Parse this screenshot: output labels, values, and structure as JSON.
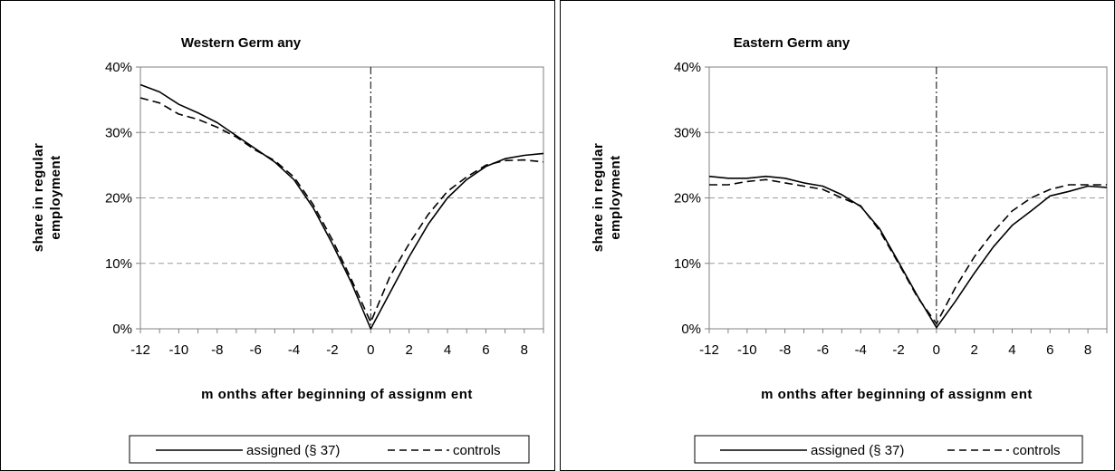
{
  "chart_data": [
    {
      "type": "line",
      "title": "Western Germ any",
      "xlabel": "m onths after beginning of assignm ent",
      "ylabel_lines": [
        "share in regular",
        "employment"
      ],
      "x": [
        -12,
        -11,
        -10,
        -9,
        -8,
        -7,
        -6,
        -5,
        -4,
        -3,
        -2,
        -1,
        0,
        1,
        2,
        3,
        4,
        5,
        6,
        7,
        8,
        9
      ],
      "xticks": [
        "-12",
        "-10",
        "-8",
        "-6",
        "-4",
        "-2",
        "0",
        "2",
        "4",
        "6",
        "8"
      ],
      "xtick_values": [
        -12,
        -10,
        -8,
        -6,
        -4,
        -2,
        0,
        2,
        4,
        6,
        8
      ],
      "yticks": [
        "0%",
        "10%",
        "20%",
        "30%",
        "40%"
      ],
      "ytick_values": [
        0,
        10,
        20,
        30,
        40
      ],
      "xlim": [
        -12,
        9
      ],
      "ylim": [
        0,
        40
      ],
      "grid": "horizontal dashed",
      "vline_x": 0,
      "legend_position": "bottom",
      "series": [
        {
          "name": "assigned (§ 37)",
          "style": "solid",
          "values": [
            37.3,
            36.2,
            34.3,
            33.0,
            31.5,
            29.5,
            27.5,
            25.5,
            22.8,
            18.5,
            13.0,
            7.0,
            0.0,
            5.5,
            11.0,
            16.0,
            20.0,
            22.8,
            24.8,
            26.0,
            26.5,
            26.8
          ]
        },
        {
          "name": "controls",
          "style": "dashed",
          "values": [
            35.3,
            34.5,
            32.8,
            32.0,
            30.8,
            29.3,
            27.3,
            25.7,
            23.2,
            19.0,
            13.6,
            7.5,
            1.0,
            8.0,
            13.0,
            17.5,
            21.0,
            23.2,
            25.0,
            25.7,
            25.8,
            25.5
          ]
        }
      ]
    },
    {
      "type": "line",
      "title": "Eastern Germ any",
      "xlabel": "m onths after beginning of assignm ent",
      "ylabel_lines": [
        "share in regular",
        "employment"
      ],
      "x": [
        -12,
        -11,
        -10,
        -9,
        -8,
        -7,
        -6,
        -5,
        -4,
        -3,
        -2,
        -1,
        0,
        1,
        2,
        3,
        4,
        5,
        6,
        7,
        8,
        9
      ],
      "xticks": [
        "-12",
        "-10",
        "-8",
        "-6",
        "-4",
        "-2",
        "0",
        "2",
        "4",
        "6",
        "8"
      ],
      "xtick_values": [
        -12,
        -10,
        -8,
        -6,
        -4,
        -2,
        0,
        2,
        4,
        6,
        8
      ],
      "yticks": [
        "0%",
        "10%",
        "20%",
        "30%",
        "40%"
      ],
      "ytick_values": [
        0,
        10,
        20,
        30,
        40
      ],
      "xlim": [
        -12,
        9
      ],
      "ylim": [
        0,
        40
      ],
      "grid": "horizontal dashed",
      "vline_x": 0,
      "legend_position": "bottom",
      "series": [
        {
          "name": "assigned (§ 37)",
          "style": "solid",
          "values": [
            23.3,
            23.0,
            23.0,
            23.3,
            23.0,
            22.3,
            21.8,
            20.5,
            18.7,
            15.3,
            10.2,
            5.0,
            0.2,
            4.2,
            8.5,
            12.5,
            15.8,
            18.0,
            20.3,
            21.0,
            21.8,
            21.6
          ]
        },
        {
          "name": "controls",
          "style": "dashed",
          "values": [
            22.0,
            22.0,
            22.5,
            22.8,
            22.3,
            21.8,
            21.3,
            20.0,
            18.8,
            15.0,
            10.0,
            4.8,
            0.8,
            6.3,
            11.0,
            14.8,
            18.0,
            20.0,
            21.3,
            22.0,
            22.0,
            22.0
          ]
        }
      ]
    }
  ]
}
